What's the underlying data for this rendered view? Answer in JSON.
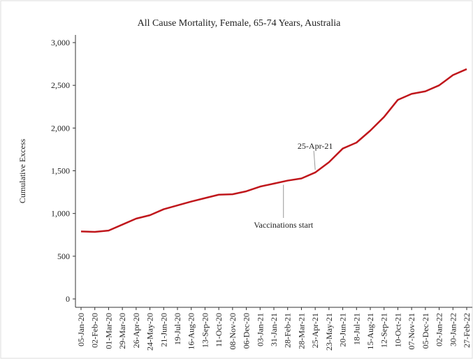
{
  "chart_data": {
    "type": "line",
    "title": "All Cause Mortality, Female, 65-74 Years, Australia",
    "y_label": "Cumulative Excess",
    "categories": [
      "05-Jan-20",
      "02-Feb-20",
      "01-Mar-20",
      "29-Mar-20",
      "26-Apr-20",
      "24-May-20",
      "21-Jun-20",
      "19-Jul-20",
      "16-Aug-20",
      "13-Sep-20",
      "11-Oct-20",
      "08-Nov-20",
      "06-Dec-20",
      "03-Jan-21",
      "31-Jan-21",
      "28-Feb-21",
      "28-Mar-21",
      "25-Apr-21",
      "23-May-21",
      "20-Jun-21",
      "18-Jul-21",
      "15-Aug-21",
      "12-Sep-21",
      "10-Oct-21",
      "07-Nov-21",
      "05-Dec-21",
      "02-Jan-22",
      "30-Jan-22",
      "27-Feb-22"
    ],
    "series": [
      {
        "name": "Cumulative Excess",
        "color": "#c0171c",
        "values": [
          790,
          785,
          800,
          870,
          940,
          980,
          1050,
          1095,
          1140,
          1180,
          1220,
          1225,
          1260,
          1315,
          1350,
          1385,
          1410,
          1480,
          1600,
          1760,
          1830,
          1970,
          2130,
          2330,
          2400,
          2430,
          2500,
          2620,
          2690
        ]
      }
    ],
    "ylim": [
      0,
      3000
    ],
    "yticks": [
      0,
      500,
      {
        "value": 1000,
        "label": "1,000"
      },
      {
        "value": 1500,
        "label": "1,500"
      },
      {
        "value": 2000,
        "label": "2,000"
      },
      {
        "value": 2500,
        "label": "2,500"
      },
      {
        "value": 3000,
        "label": "3,000"
      }
    ],
    "annotations": [
      {
        "text": "25-Apr-21"
      },
      {
        "text": "Vaccinations start"
      }
    ]
  }
}
